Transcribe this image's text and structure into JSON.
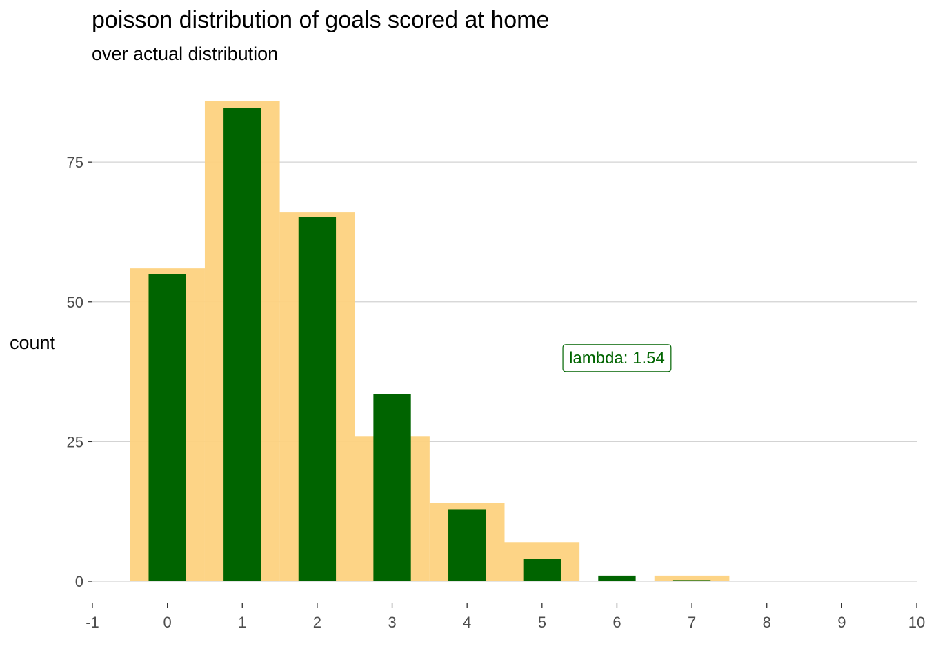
{
  "chart_data": {
    "type": "bar",
    "title": "poisson distribution of goals scored at home",
    "subtitle": "over actual distribution",
    "xlabel": "",
    "ylabel": "count",
    "xlim": [
      -1,
      10
    ],
    "ylim": [
      0,
      86
    ],
    "x_ticks": [
      "-1",
      "0",
      "1",
      "2",
      "3",
      "4",
      "5",
      "6",
      "7",
      "8",
      "9",
      "10"
    ],
    "y_ticks": [
      "0",
      "25",
      "50",
      "75"
    ],
    "grid": "horizontal major gridlines",
    "legend": "none",
    "series": [
      {
        "role": "actual",
        "color": "#FDD27F",
        "x": [
          0,
          1,
          2,
          3,
          4,
          5,
          6,
          7,
          8,
          9
        ],
        "values": [
          56,
          86,
          66,
          26,
          14,
          7,
          0,
          1,
          0,
          0
        ]
      },
      {
        "role": "poisson",
        "color": "#006400",
        "x": [
          0,
          1,
          2,
          3,
          4,
          5,
          6,
          7,
          8,
          9
        ],
        "values": [
          55.0,
          84.7,
          65.2,
          33.5,
          12.9,
          4.0,
          1.0,
          0.2,
          0.0,
          0.0
        ]
      }
    ],
    "annotation": {
      "text": "lambda: 1.54",
      "x": 6.0,
      "y": 40,
      "color": "#006400"
    }
  },
  "colors": {
    "grid": "#d3d3d3",
    "tick_text": "#4d4d4d",
    "background": "#ffffff"
  }
}
